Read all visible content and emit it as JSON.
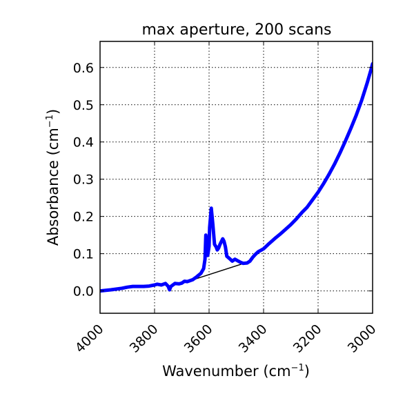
{
  "chart_data": {
    "type": "line",
    "title": "max aperture, 200 scans",
    "xlabel": "Wavenumber (cm",
    "xlabel_sup": "−1",
    "xlabel_close": ")",
    "ylabel": "Absorbance (cm",
    "ylabel_sup": "−1",
    "ylabel_close": ")",
    "xlim": [
      4000,
      3000
    ],
    "ylim": [
      -0.06,
      0.67
    ],
    "x_inverted": true,
    "grid": true,
    "grid_style": "dotted",
    "x_ticks": [
      4000,
      3800,
      3600,
      3400,
      3200,
      3000
    ],
    "x_tick_labels": [
      "4000",
      "3800",
      "3600",
      "3400",
      "3200",
      "3000"
    ],
    "y_ticks": [
      0.0,
      0.1,
      0.2,
      0.3,
      0.4,
      0.5,
      0.6
    ],
    "y_tick_labels": [
      "0.0",
      "0.1",
      "0.2",
      "0.3",
      "0.4",
      "0.5",
      "0.6"
    ],
    "series": [
      {
        "color": "#0000ff",
        "role": "spectrum",
        "x": [
          4000,
          3960,
          3920,
          3900,
          3880,
          3860,
          3840,
          3820,
          3800,
          3790,
          3775,
          3760,
          3750,
          3745,
          3740,
          3725,
          3710,
          3700,
          3690,
          3680,
          3660,
          3645,
          3630,
          3620,
          3615,
          3612,
          3605,
          3600,
          3598,
          3592,
          3586,
          3580,
          3574,
          3570,
          3565,
          3560,
          3550,
          3545,
          3540,
          3535,
          3525,
          3515,
          3505,
          3495,
          3485,
          3475,
          3460,
          3450,
          3440,
          3430,
          3420,
          3400,
          3380,
          3360,
          3340,
          3320,
          3300,
          3280,
          3260,
          3240,
          3220,
          3200,
          3180,
          3160,
          3140,
          3120,
          3100,
          3080,
          3060,
          3040,
          3020,
          3005,
          3000
        ],
        "y": [
          0.0,
          0.003,
          0.007,
          0.01,
          0.012,
          0.012,
          0.012,
          0.013,
          0.016,
          0.018,
          0.016,
          0.02,
          0.012,
          0.003,
          0.012,
          0.02,
          0.019,
          0.021,
          0.026,
          0.025,
          0.03,
          0.038,
          0.047,
          0.06,
          0.085,
          0.15,
          0.095,
          0.12,
          0.17,
          0.222,
          0.178,
          0.125,
          0.118,
          0.11,
          0.115,
          0.125,
          0.14,
          0.133,
          0.118,
          0.093,
          0.087,
          0.08,
          0.085,
          0.081,
          0.077,
          0.074,
          0.075,
          0.08,
          0.09,
          0.098,
          0.105,
          0.113,
          0.127,
          0.14,
          0.152,
          0.165,
          0.178,
          0.193,
          0.21,
          0.225,
          0.245,
          0.265,
          0.288,
          0.313,
          0.34,
          0.37,
          0.402,
          0.436,
          0.472,
          0.512,
          0.558,
          0.596,
          0.61
        ]
      },
      {
        "color": "#000000",
        "role": "baseline",
        "x": [
          3650,
          3460
        ],
        "y": [
          0.032,
          0.077
        ]
      }
    ]
  }
}
